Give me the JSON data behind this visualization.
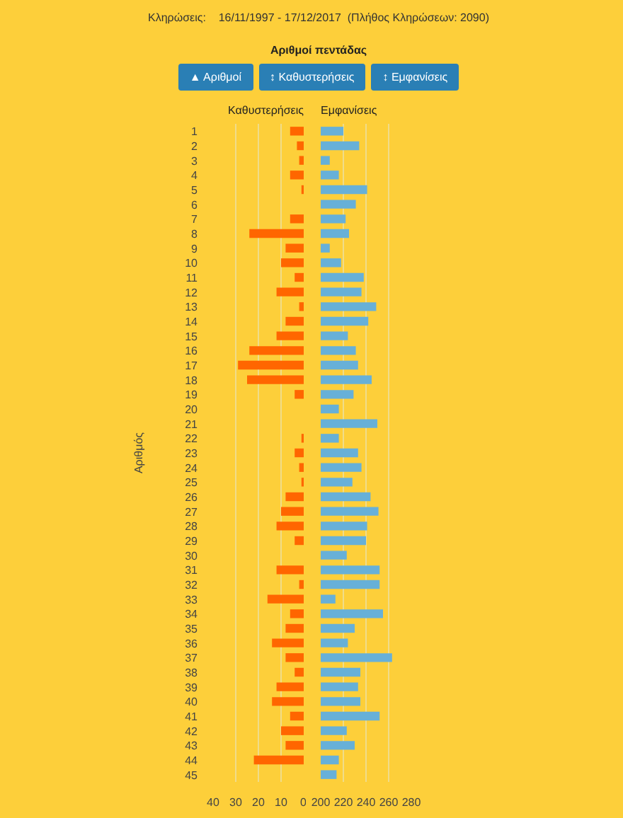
{
  "chart_data": [
    {
      "type": "bar",
      "orientation": "horizontal",
      "title": "Κληρώσεις:    16/11/1997 - 17/12/2017  (Πλήθος Κληρώσεων: 2090)",
      "subtitle": "Αριθμοί πεντάδας",
      "annotations": [
        "▲ Αριθμοί",
        "↕ Καθυστερήσεις",
        "↕ Εμφανίσεις"
      ],
      "ylabel": "Αριθμός",
      "categories": [
        "1",
        "2",
        "3",
        "4",
        "5",
        "6",
        "7",
        "8",
        "9",
        "10",
        "11",
        "12",
        "13",
        "14",
        "15",
        "16",
        "17",
        "18",
        "19",
        "20",
        "21",
        "22",
        "23",
        "24",
        "25",
        "26",
        "27",
        "28",
        "29",
        "30",
        "31",
        "32",
        "33",
        "34",
        "35",
        "36",
        "37",
        "38",
        "39",
        "40",
        "41",
        "42",
        "43",
        "44",
        "45"
      ],
      "series": [
        {
          "name": "Καθυστερήσεις",
          "color": "#ff6600",
          "values": [
            6,
            3,
            2,
            6,
            1,
            0,
            6,
            24,
            8,
            10,
            4,
            12,
            2,
            8,
            12,
            24,
            29,
            25,
            4,
            0,
            0,
            1,
            4,
            2,
            1,
            8,
            10,
            12,
            4,
            0,
            12,
            2,
            16,
            6,
            8,
            14,
            8,
            4,
            12,
            14,
            6,
            10,
            8,
            22,
            0
          ]
        }
      ],
      "xlim": [
        40,
        0
      ],
      "xticks": [
        40,
        30,
        20,
        10,
        0
      ],
      "grid": "x"
    },
    {
      "type": "bar",
      "orientation": "horizontal",
      "categories": [
        "1",
        "2",
        "3",
        "4",
        "5",
        "6",
        "7",
        "8",
        "9",
        "10",
        "11",
        "12",
        "13",
        "14",
        "15",
        "16",
        "17",
        "18",
        "19",
        "20",
        "21",
        "22",
        "23",
        "24",
        "25",
        "26",
        "27",
        "28",
        "29",
        "30",
        "31",
        "32",
        "33",
        "34",
        "35",
        "36",
        "37",
        "38",
        "39",
        "40",
        "41",
        "42",
        "43",
        "44",
        "45"
      ],
      "series": [
        {
          "name": "Εμφανίσεις",
          "color": "#67b0d8",
          "values": [
            220,
            234,
            208,
            216,
            241,
            231,
            222,
            225,
            208,
            218,
            238,
            236,
            249,
            242,
            224,
            231,
            233,
            245,
            229,
            216,
            250,
            216,
            233,
            236,
            228,
            244,
            251,
            241,
            240,
            223,
            252,
            252,
            213,
            255,
            230,
            224,
            263,
            235,
            233,
            235,
            252,
            223,
            230,
            216,
            214
          ]
        }
      ],
      "xlim": [
        200,
        280
      ],
      "xticks": [
        200,
        220,
        240,
        260,
        280
      ],
      "grid": "x",
      "tick_labels": "x"
    }
  ]
}
